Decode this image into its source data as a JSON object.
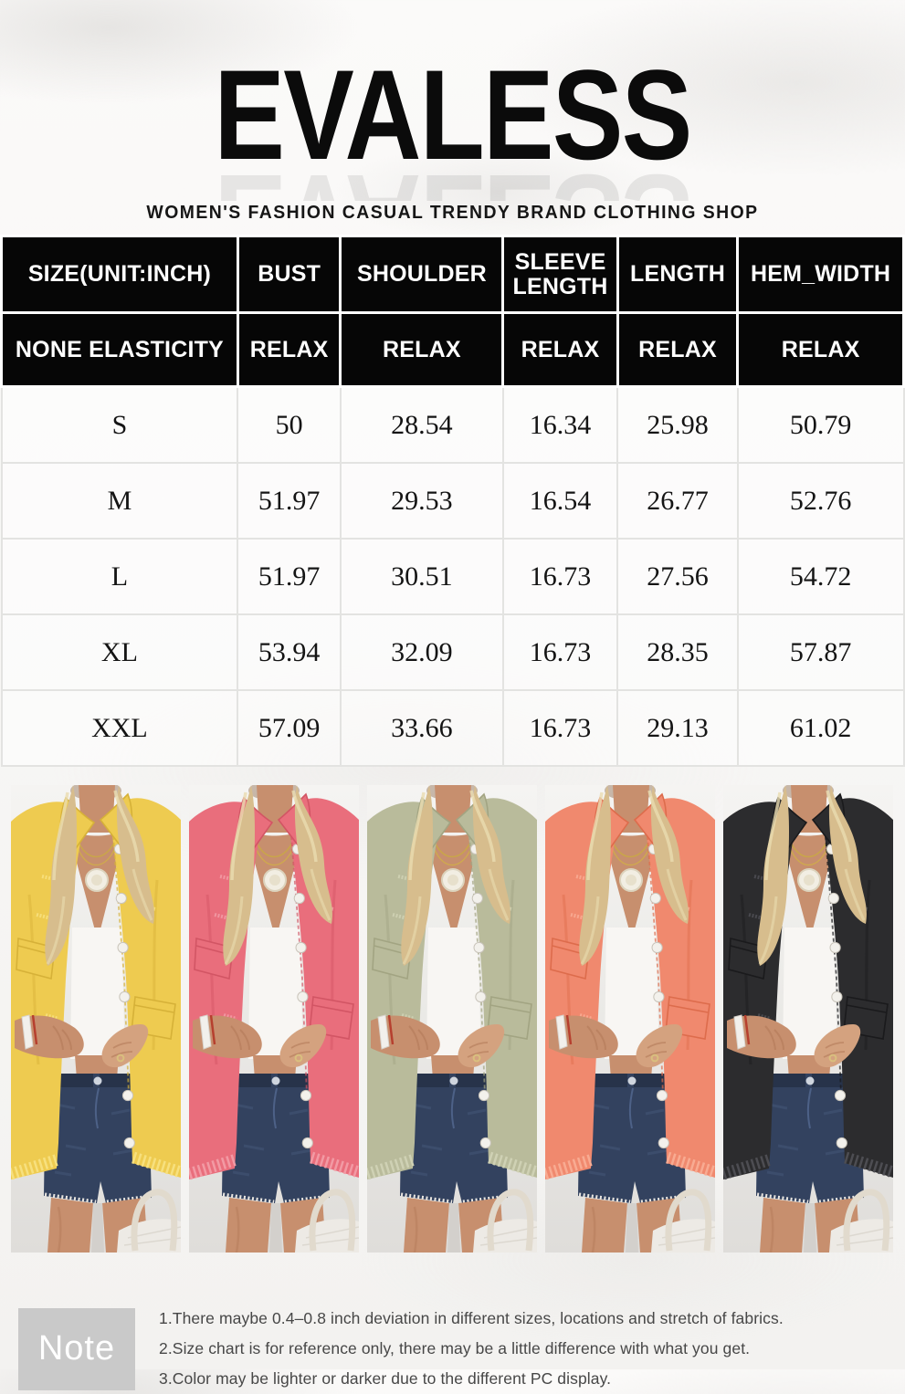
{
  "header": {
    "brand": "EVALESS",
    "tagline": "WOMEN'S FASHION CASUAL TRENDY BRAND CLOTHING SHOP"
  },
  "size_table": {
    "unit": "INCH",
    "columns": [
      "SIZE(UNIT:INCH)",
      "BUST",
      "SHOULDER",
      "SLEEVE LENGTH",
      "LENGTH",
      "HEM_WIDTH"
    ],
    "elasticity_row": [
      "NONE ELASTICITY",
      "RELAX",
      "RELAX",
      "RELAX",
      "RELAX",
      "RELAX"
    ],
    "rows": [
      [
        "S",
        "50",
        "28.54",
        "16.34",
        "25.98",
        "50.79"
      ],
      [
        "M",
        "51.97",
        "29.53",
        "16.54",
        "26.77",
        "52.76"
      ],
      [
        "L",
        "51.97",
        "30.51",
        "16.73",
        "27.56",
        "54.72"
      ],
      [
        "XL",
        "53.94",
        "32.09",
        "16.73",
        "28.35",
        "57.87"
      ],
      [
        "XXL",
        "57.09",
        "33.66",
        "16.73",
        "29.13",
        "61.02"
      ]
    ],
    "header_bg": "#060606",
    "header_text": "#ffffff"
  },
  "product_photos": [
    {
      "color_name": "yellow",
      "jacket": "#eecb50",
      "jacket_dark": "#d6b138",
      "jacket_light": "#f7e07e"
    },
    {
      "color_name": "pink",
      "jacket": "#e96e7c",
      "jacket_dark": "#d25564",
      "jacket_light": "#f29aa4"
    },
    {
      "color_name": "sage-green",
      "jacket": "#b9bb9b",
      "jacket_dark": "#a2a482",
      "jacket_light": "#cfd1b4"
    },
    {
      "color_name": "coral-orange",
      "jacket": "#f0896e",
      "jacket_dark": "#dd6c4c",
      "jacket_light": "#f8ab92"
    },
    {
      "color_name": "black",
      "jacket": "#2c2c2e",
      "jacket_dark": "#1a1a1c",
      "jacket_light": "#4d4d52"
    }
  ],
  "note": {
    "label": "Note",
    "box_color": "#c9c9c9",
    "lines": [
      "1.There maybe 0.4–0.8 inch deviation in different sizes, locations and  stretch of fabrics.",
      "2.Size chart is for reference only, there may be a little difference with what you get.",
      "3.Color may be lighter or darker due to the different PC display."
    ]
  }
}
